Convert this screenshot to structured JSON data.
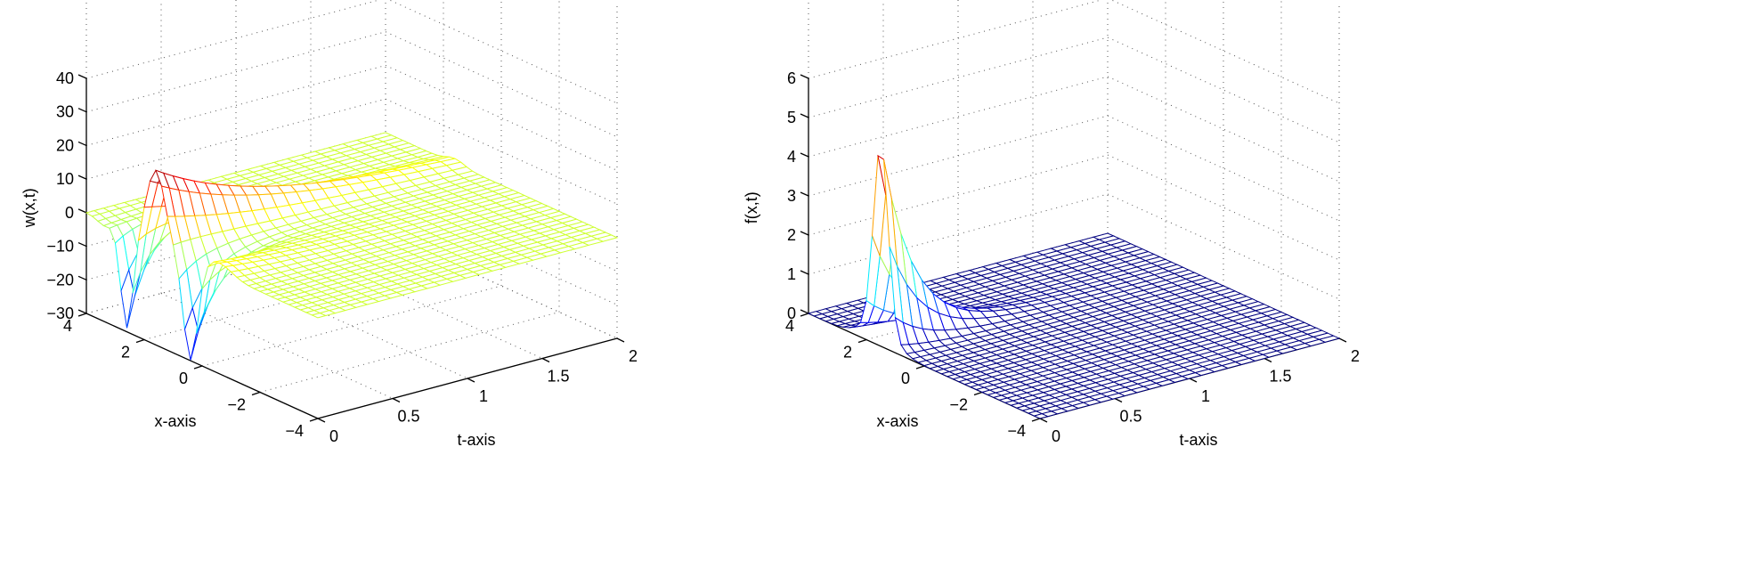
{
  "chart_data": [
    {
      "type": "surface-mesh",
      "function": "w(x,t)",
      "xlabel": "x-axis",
      "ylabel": "t-axis",
      "zlabel": "w(x,t)",
      "xlim": [
        -4,
        4
      ],
      "tlim": [
        0,
        2
      ],
      "zlim": [
        -30,
        40
      ],
      "xticks": [
        "4",
        "2",
        "0",
        "−2",
        "−4"
      ],
      "xtick_values": [
        4,
        2,
        0,
        -2,
        -4
      ],
      "tticks": [
        "0",
        "0.5",
        "1",
        "1.5",
        "2"
      ],
      "ttick_values": [
        0,
        0.5,
        1,
        1.5,
        2
      ],
      "zticks": [
        "40",
        "30",
        "20",
        "10",
        "0",
        "−10",
        "−20",
        "−30"
      ],
      "ztick_values": [
        40,
        30,
        20,
        10,
        0,
        -10,
        -20,
        -30
      ],
      "features": {
        "peak_value": 20,
        "peak_x": 1.6,
        "min_value": -30,
        "dip_x": [
          2.6,
          0.4
        ],
        "baseline": 0
      },
      "colormap": "jet",
      "grid": true
    },
    {
      "type": "surface-mesh",
      "function": "f(x,t)",
      "xlabel": "x-axis",
      "ylabel": "t-axis",
      "zlabel": "f(x,t)",
      "xlim": [
        -4,
        4
      ],
      "tlim": [
        0,
        2
      ],
      "zlim": [
        0,
        6
      ],
      "xticks": [
        "4",
        "2",
        "0",
        "−2",
        "−4"
      ],
      "xtick_values": [
        4,
        2,
        0,
        -2,
        -4
      ],
      "tticks": [
        "0",
        "0.5",
        "1",
        "1.5",
        "2"
      ],
      "ttick_values": [
        0,
        0.5,
        1,
        1.5,
        2
      ],
      "zticks": [
        "6",
        "5",
        "4",
        "3",
        "2",
        "1",
        "0"
      ],
      "ztick_values": [
        6,
        5,
        4,
        3,
        2,
        1,
        0
      ],
      "features": {
        "peak_value": 4.7,
        "peak_x": 1.5,
        "baseline": 0
      },
      "colormap": "jet",
      "grid": true
    }
  ]
}
